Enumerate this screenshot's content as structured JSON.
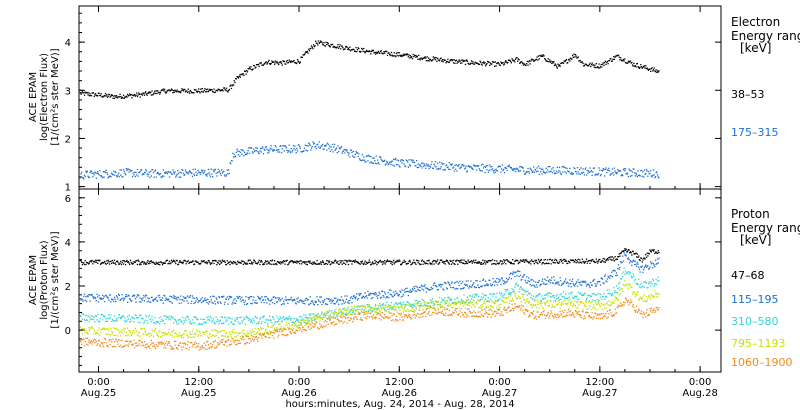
{
  "chart_data": [
    {
      "type": "scatter",
      "panel": "electron",
      "ylabel_lines": [
        "ACE EPAM",
        "log(Electron Flux)",
        "[1/(cm²s ster MeV)]"
      ],
      "ylim": [
        0.95,
        4.75
      ],
      "yticks": [
        1,
        2,
        3,
        4
      ],
      "xlim": [
        "2014-08-24T21:40",
        "2014-08-28T02:30"
      ],
      "legend": {
        "title_lines": [
          "Electron",
          "Energy range",
          "[keV]"
        ],
        "placement": "right"
      },
      "series": [
        {
          "name": "38–53",
          "color": "#000000",
          "points": [
            [
              "2014-08-24T21:45",
              2.95
            ],
            [
              "2014-08-25T02:00",
              2.88
            ],
            [
              "2014-08-25T05:00",
              2.92
            ],
            [
              "2014-08-25T08:00",
              3.0
            ],
            [
              "2014-08-25T12:00",
              3.0
            ],
            [
              "2014-08-25T15:00",
              3.02
            ],
            [
              "2014-08-25T15:30",
              3.02
            ],
            [
              "2014-08-25T16:30",
              3.25
            ],
            [
              "2014-08-25T18:00",
              3.45
            ],
            [
              "2014-08-25T20:00",
              3.6
            ],
            [
              "2014-08-25T22:00",
              3.58
            ],
            [
              "2014-08-26T00:00",
              3.62
            ],
            [
              "2014-08-26T01:00",
              3.82
            ],
            [
              "2014-08-26T02:00",
              4.0
            ],
            [
              "2014-08-26T03:00",
              3.98
            ],
            [
              "2014-08-26T06:00",
              3.88
            ],
            [
              "2014-08-26T09:00",
              3.8
            ],
            [
              "2014-08-26T12:00",
              3.75
            ],
            [
              "2014-08-26T15:00",
              3.68
            ],
            [
              "2014-08-26T18:00",
              3.62
            ],
            [
              "2014-08-26T21:00",
              3.58
            ],
            [
              "2014-08-27T00:00",
              3.55
            ],
            [
              "2014-08-27T02:00",
              3.65
            ],
            [
              "2014-08-27T03:00",
              3.55
            ],
            [
              "2014-08-27T05:00",
              3.72
            ],
            [
              "2014-08-27T07:00",
              3.5
            ],
            [
              "2014-08-27T09:00",
              3.75
            ],
            [
              "2014-08-27T10:00",
              3.55
            ],
            [
              "2014-08-27T12:00",
              3.52
            ],
            [
              "2014-08-27T14:00",
              3.72
            ],
            [
              "2014-08-27T16:00",
              3.55
            ],
            [
              "2014-08-27T19:00",
              3.4
            ]
          ]
        },
        {
          "name": "175–315",
          "color": "#1f6fd1",
          "points": [
            [
              "2014-08-24T21:45",
              1.25
            ],
            [
              "2014-08-25T03:00",
              1.3
            ],
            [
              "2014-08-25T07:00",
              1.28
            ],
            [
              "2014-08-25T12:00",
              1.3
            ],
            [
              "2014-08-25T15:30",
              1.3
            ],
            [
              "2014-08-25T16:00",
              1.7
            ],
            [
              "2014-08-25T20:00",
              1.78
            ],
            [
              "2014-08-26T00:00",
              1.8
            ],
            [
              "2014-08-26T02:00",
              1.88
            ],
            [
              "2014-08-26T04:00",
              1.82
            ],
            [
              "2014-08-26T08:00",
              1.6
            ],
            [
              "2014-08-26T12:00",
              1.5
            ],
            [
              "2014-08-26T16:00",
              1.45
            ],
            [
              "2014-08-26T20:00",
              1.4
            ],
            [
              "2014-08-27T00:00",
              1.38
            ],
            [
              "2014-08-27T04:00",
              1.35
            ],
            [
              "2014-08-27T08:00",
              1.35
            ],
            [
              "2014-08-27T12:00",
              1.32
            ],
            [
              "2014-08-27T16:00",
              1.3
            ],
            [
              "2014-08-27T19:00",
              1.28
            ]
          ]
        }
      ]
    },
    {
      "type": "scatter",
      "panel": "proton",
      "ylabel_lines": [
        "ACE EPAM",
        "log(Proton Flux)",
        "[1/(cm²s ster MeV)]"
      ],
      "ylim": [
        -1.9,
        6.4
      ],
      "yticks": [
        0,
        2,
        4,
        6
      ],
      "xlim": [
        "2014-08-24T21:40",
        "2014-08-28T02:30"
      ],
      "xticks": [
        {
          "t": "2014-08-25T00:00",
          "label": [
            "0:00",
            "Aug.25"
          ]
        },
        {
          "t": "2014-08-25T12:00",
          "label": [
            "12:00",
            "Aug.25"
          ]
        },
        {
          "t": "2014-08-26T00:00",
          "label": [
            "0:00",
            "Aug.26"
          ]
        },
        {
          "t": "2014-08-26T12:00",
          "label": [
            "12:00",
            "Aug.26"
          ]
        },
        {
          "t": "2014-08-27T00:00",
          "label": [
            "0:00",
            "Aug.27"
          ]
        },
        {
          "t": "2014-08-27T12:00",
          "label": [
            "12:00",
            "Aug.27"
          ]
        },
        {
          "t": "2014-08-28T00:00",
          "label": [
            "0:00",
            "Aug.28"
          ]
        }
      ],
      "xlabel": "hours:minutes, Aug. 24, 2014 - Aug. 28, 2014",
      "legend": {
        "title_lines": [
          "Proton",
          "Energy range",
          "[keV]"
        ],
        "placement": "right"
      },
      "series": [
        {
          "name": "47–68",
          "color": "#000000",
          "points": [
            [
              "2014-08-24T21:45",
              3.1
            ],
            [
              "2014-08-25T12:00",
              3.1
            ],
            [
              "2014-08-26T00:00",
              3.1
            ],
            [
              "2014-08-26T12:00",
              3.1
            ],
            [
              "2014-08-27T00:00",
              3.12
            ],
            [
              "2014-08-27T12:00",
              3.15
            ],
            [
              "2014-08-27T14:00",
              3.3
            ],
            [
              "2014-08-27T15:00",
              3.65
            ],
            [
              "2014-08-27T16:00",
              3.5
            ],
            [
              "2014-08-27T17:00",
              3.2
            ],
            [
              "2014-08-27T18:00",
              3.6
            ],
            [
              "2014-08-27T19:00",
              3.6
            ]
          ]
        },
        {
          "name": "115–195",
          "color": "#1f6fd1",
          "points": [
            [
              "2014-08-24T21:45",
              1.5
            ],
            [
              "2014-08-25T12:00",
              1.4
            ],
            [
              "2014-08-26T00:00",
              1.35
            ],
            [
              "2014-08-26T06:00",
              1.4
            ],
            [
              "2014-08-26T08:00",
              1.6
            ],
            [
              "2014-08-26T12:00",
              1.7
            ],
            [
              "2014-08-26T16:00",
              2.0
            ],
            [
              "2014-08-26T20:00",
              2.1
            ],
            [
              "2014-08-27T00:00",
              2.2
            ],
            [
              "2014-08-27T02:00",
              2.6
            ],
            [
              "2014-08-27T04:00",
              2.1
            ],
            [
              "2014-08-27T06:00",
              2.3
            ],
            [
              "2014-08-27T08:00",
              2.2
            ],
            [
              "2014-08-27T10:00",
              2.1
            ],
            [
              "2014-08-27T12:00",
              2.2
            ],
            [
              "2014-08-27T14:00",
              2.7
            ],
            [
              "2014-08-27T15:00",
              3.5
            ],
            [
              "2014-08-27T16:00",
              3.0
            ],
            [
              "2014-08-27T17:00",
              2.8
            ],
            [
              "2014-08-27T19:00",
              3.15
            ]
          ]
        },
        {
          "name": "310–580",
          "color": "#2fd6d6",
          "points": [
            [
              "2014-08-24T21:45",
              0.6
            ],
            [
              "2014-08-25T12:00",
              0.45
            ],
            [
              "2014-08-26T00:00",
              0.5
            ],
            [
              "2014-08-26T06:00",
              0.9
            ],
            [
              "2014-08-26T10:00",
              1.1
            ],
            [
              "2014-08-26T16:00",
              1.3
            ],
            [
              "2014-08-26T20:00",
              1.45
            ],
            [
              "2014-08-27T00:00",
              1.55
            ],
            [
              "2014-08-27T02:00",
              2.0
            ],
            [
              "2014-08-27T04:00",
              1.5
            ],
            [
              "2014-08-27T08:00",
              1.6
            ],
            [
              "2014-08-27T12:00",
              1.5
            ],
            [
              "2014-08-27T14:00",
              1.9
            ],
            [
              "2014-08-27T15:00",
              2.8
            ],
            [
              "2014-08-27T16:00",
              2.4
            ],
            [
              "2014-08-27T17:00",
              2.0
            ],
            [
              "2014-08-27T19:00",
              2.3
            ]
          ]
        },
        {
          "name": "795–1193",
          "color": "#c8e000",
          "points": [
            [
              "2014-08-24T21:45",
              0.0
            ],
            [
              "2014-08-25T12:00",
              -0.15
            ],
            [
              "2014-08-25T18:00",
              -0.1
            ],
            [
              "2014-08-26T00:00",
              0.3
            ],
            [
              "2014-08-26T04:00",
              0.8
            ],
            [
              "2014-08-26T08:00",
              1.0
            ],
            [
              "2014-08-26T12:00",
              1.0
            ],
            [
              "2014-08-26T16:00",
              1.2
            ],
            [
              "2014-08-26T20:00",
              1.2
            ],
            [
              "2014-08-27T00:00",
              1.2
            ],
            [
              "2014-08-27T02:00",
              1.6
            ],
            [
              "2014-08-27T04:00",
              1.2
            ],
            [
              "2014-08-27T08:00",
              1.2
            ],
            [
              "2014-08-27T12:00",
              1.1
            ],
            [
              "2014-08-27T14:00",
              1.4
            ],
            [
              "2014-08-27T15:00",
              2.2
            ],
            [
              "2014-08-27T16:00",
              1.8
            ],
            [
              "2014-08-27T17:00",
              1.4
            ],
            [
              "2014-08-27T19:00",
              1.7
            ]
          ]
        },
        {
          "name": "1060–1900",
          "color": "#ec8c1c",
          "points": [
            [
              "2014-08-24T21:45",
              -0.5
            ],
            [
              "2014-08-25T12:00",
              -0.7
            ],
            [
              "2014-08-25T18:00",
              -0.4
            ],
            [
              "2014-08-26T00:00",
              0.1
            ],
            [
              "2014-08-26T04:00",
              0.4
            ],
            [
              "2014-08-26T08:00",
              0.7
            ],
            [
              "2014-08-26T12:00",
              0.6
            ],
            [
              "2014-08-26T16:00",
              0.9
            ],
            [
              "2014-08-26T20:00",
              0.8
            ],
            [
              "2014-08-27T00:00",
              0.8
            ],
            [
              "2014-08-27T02:00",
              1.1
            ],
            [
              "2014-08-27T04:00",
              0.7
            ],
            [
              "2014-08-27T08:00",
              0.8
            ],
            [
              "2014-08-27T12:00",
              0.6
            ],
            [
              "2014-08-27T14:00",
              0.9
            ],
            [
              "2014-08-27T15:00",
              1.4
            ],
            [
              "2014-08-27T16:00",
              1.1
            ],
            [
              "2014-08-27T17:00",
              0.7
            ],
            [
              "2014-08-27T19:00",
              1.0
            ]
          ]
        }
      ]
    }
  ]
}
